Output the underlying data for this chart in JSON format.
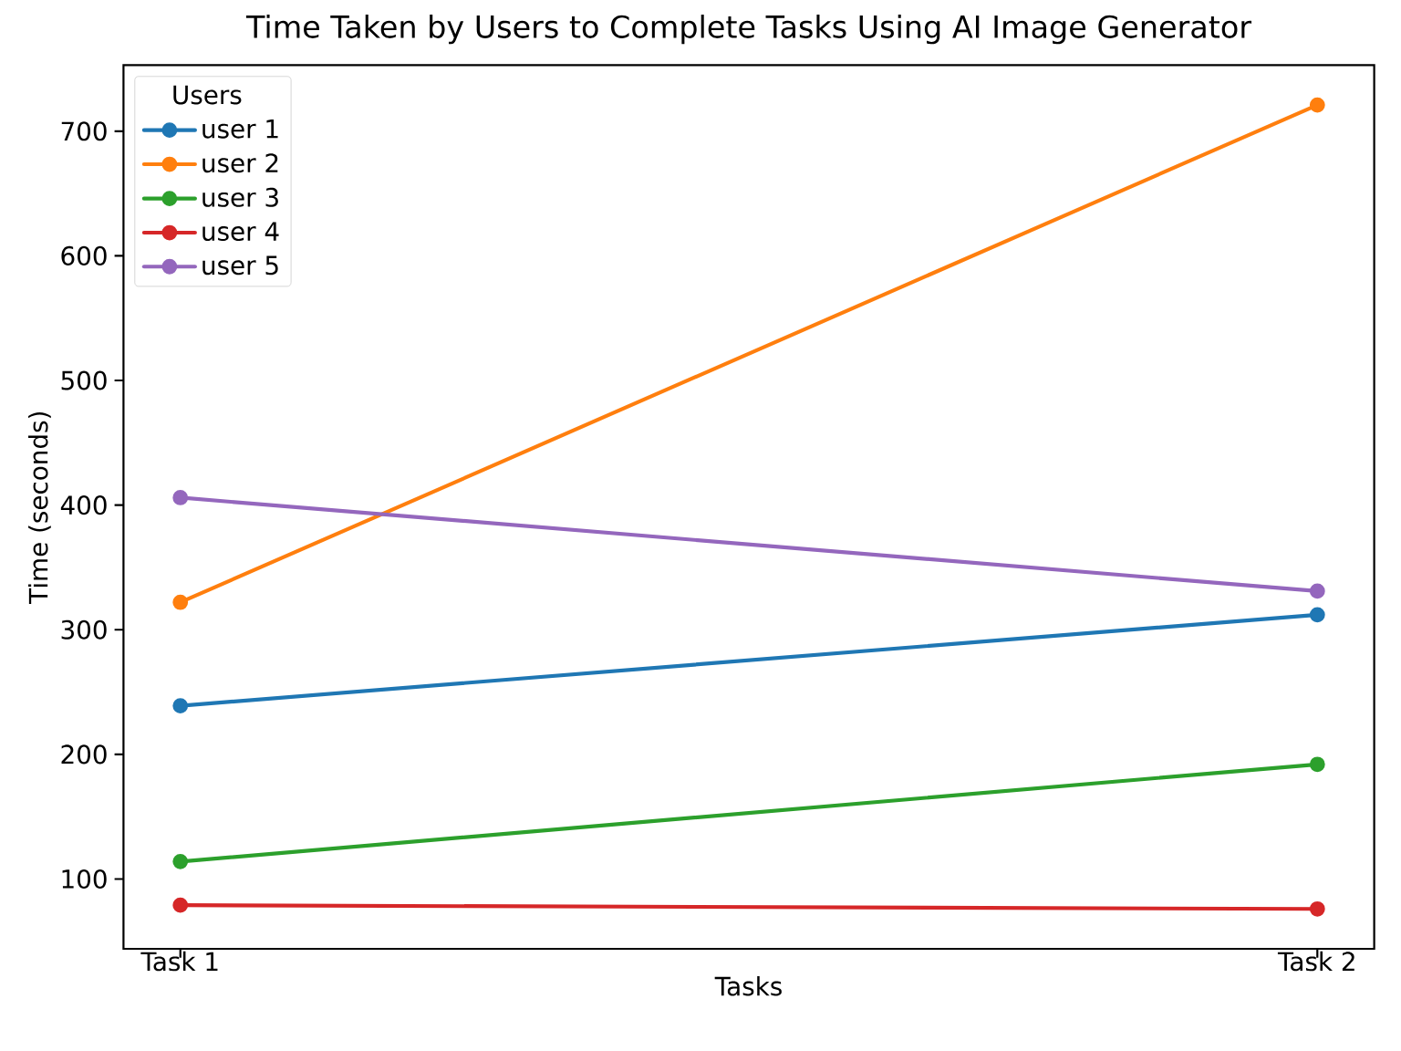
{
  "chart_data": {
    "type": "line",
    "title": "Time Taken by Users to Complete Tasks Using AI Image Generator",
    "xlabel": "Tasks",
    "ylabel": "Time (seconds)",
    "legend_title": "Users",
    "categories": [
      "Task 1",
      "Task 2"
    ],
    "series": [
      {
        "name": "user 1",
        "color": "#1f77b4",
        "values": [
          239,
          312
        ]
      },
      {
        "name": "user 2",
        "color": "#ff7f0e",
        "values": [
          322,
          721
        ]
      },
      {
        "name": "user 3",
        "color": "#2ca02c",
        "values": [
          114,
          192
        ]
      },
      {
        "name": "user 4",
        "color": "#d62728",
        "values": [
          79,
          76
        ]
      },
      {
        "name": "user 5",
        "color": "#9467bd",
        "values": [
          406,
          331
        ]
      }
    ],
    "ylim": [
      44,
      753
    ],
    "yticks": [
      100,
      200,
      300,
      400,
      500,
      600,
      700
    ],
    "legend": "top left",
    "marker": "circle",
    "line_style": "solid"
  }
}
